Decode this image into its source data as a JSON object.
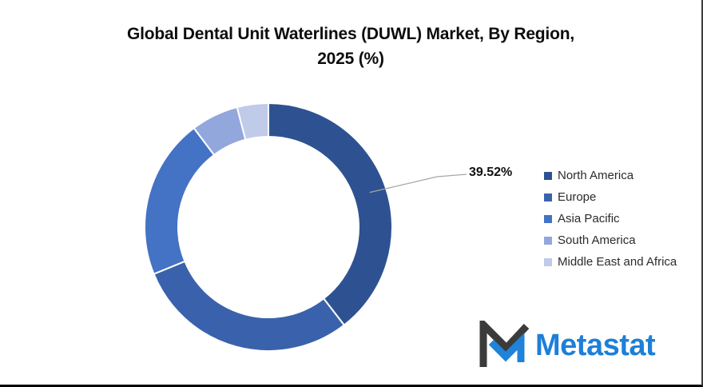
{
  "title": {
    "full": "Global Dental Unit Waterlines (DUWL) Market, By Region, 2025 (%)",
    "line1": "Global Dental Unit Waterlines (DUWL) Market, By Region,",
    "line2": "2025 (%)"
  },
  "chart_data": {
    "type": "pie",
    "subtype": "donut",
    "title": "Global Dental Unit Waterlines (DUWL) Market, By Region, 2025 (%)",
    "categories": [
      "North America",
      "Europe",
      "Asia Pacific",
      "South America",
      "Middle East and Africa"
    ],
    "values": [
      39.52,
      29.3,
      20.9,
      6.2,
      4.08
    ],
    "estimated": [
      false,
      true,
      true,
      true,
      true
    ],
    "data_label": "39.52%",
    "data_label_series": "North America",
    "colors": [
      "#2E5291",
      "#3A62AC",
      "#4472C4",
      "#92A7DB",
      "#C0CAE9"
    ],
    "slice_gap_color": "#ffffff",
    "leader_line_color": "#A6A6A6",
    "legend_position": "right",
    "start_angle_deg": 0,
    "clockwise": true,
    "donut_hole_ratio": 0.73,
    "grid": "off"
  },
  "logo": {
    "text": "Metastat",
    "text_color": "#1d7fd8",
    "mark_dark_color": "#3B3B3B",
    "mark_blue_color": "#2082D8"
  }
}
